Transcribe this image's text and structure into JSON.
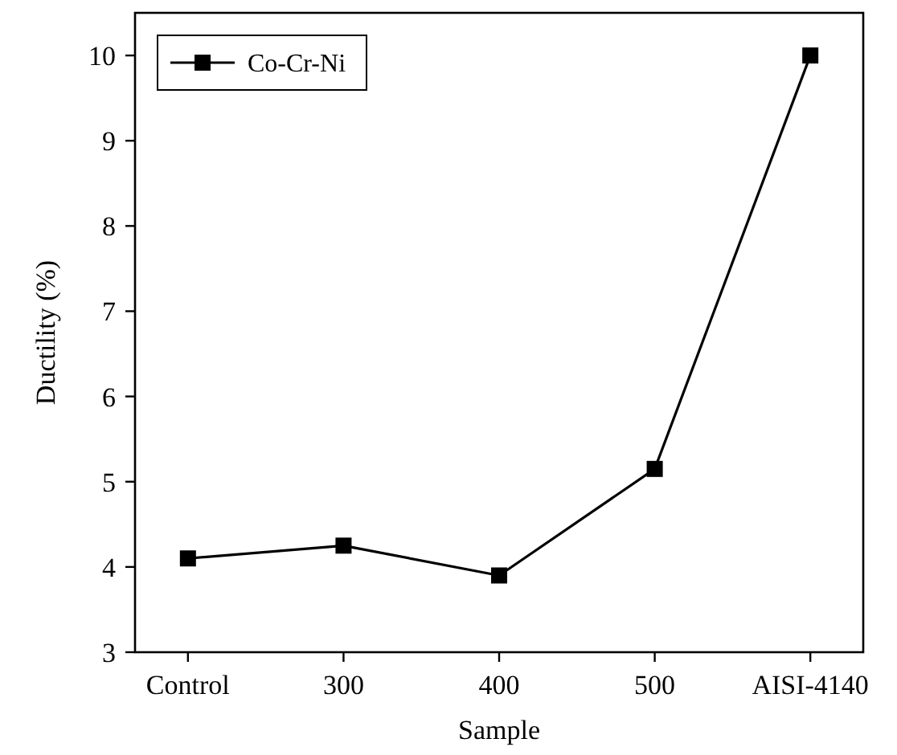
{
  "chart_data": {
    "type": "line",
    "xlabel": "Sample",
    "ylabel": "Ductility (%)",
    "categories": [
      "Control",
      "300",
      "400",
      "500",
      "AISI-4140"
    ],
    "series": [
      {
        "name": "Co-Cr-Ni",
        "color": "#000000",
        "values": [
          4.1,
          4.25,
          3.9,
          5.15,
          10
        ]
      }
    ],
    "ylim": [
      3,
      10.5
    ],
    "yticks": [
      3,
      4,
      5,
      6,
      7,
      8,
      9,
      10
    ],
    "marker": "square",
    "line_style": "solid",
    "legend": "top left",
    "grid": false
  }
}
